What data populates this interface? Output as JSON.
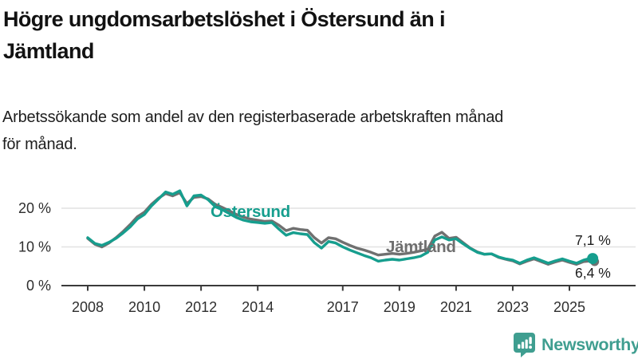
{
  "header": {
    "title_lines": [
      "Högre ungdomsarbetslöshet i Östersund än i",
      "Jämtland"
    ],
    "subtitle_lines": [
      "Arbetssökande som andel av den registerbaserade arbetskraften månad",
      "för månad."
    ]
  },
  "chart_data": {
    "type": "line",
    "title": "Högre ungdomsarbetslöshet i Östersund än i Jämtland",
    "subtitle": "Arbetssökande som andel av den registerbaserade arbetskraften månad för månad.",
    "xlabel": "",
    "ylabel": "",
    "ylim": [
      0,
      26
    ],
    "xlim": [
      2007.1,
      2027.3
    ],
    "grid": "horizontal",
    "legend_position": "inline-labels",
    "y_ticks": [
      {
        "value": 0,
        "label": "0 %"
      },
      {
        "value": 10,
        "label": "10 %"
      },
      {
        "value": 20,
        "label": "20 %"
      }
    ],
    "x_ticks": [
      {
        "value": 2008,
        "label": "2008"
      },
      {
        "value": 2010,
        "label": "2010"
      },
      {
        "value": 2012,
        "label": "2012"
      },
      {
        "value": 2014,
        "label": "2014"
      },
      {
        "value": 2017,
        "label": "2017"
      },
      {
        "value": 2019,
        "label": "2019"
      },
      {
        "value": 2021,
        "label": "2021"
      },
      {
        "value": 2023,
        "label": "2023"
      },
      {
        "value": 2025,
        "label": "2025"
      }
    ],
    "x": [
      2008.0,
      2008.25,
      2008.5,
      2008.75,
      2009.0,
      2009.25,
      2009.5,
      2009.75,
      2010.0,
      2010.25,
      2010.5,
      2010.75,
      2011.0,
      2011.25,
      2011.5,
      2011.75,
      2012.0,
      2012.25,
      2012.5,
      2012.75,
      2013.0,
      2013.25,
      2013.5,
      2013.75,
      2014.0,
      2014.25,
      2014.5,
      2014.75,
      2015.0,
      2015.25,
      2015.5,
      2015.75,
      2016.0,
      2016.25,
      2016.5,
      2016.75,
      2017.0,
      2017.25,
      2017.5,
      2017.75,
      2018.0,
      2018.25,
      2018.5,
      2018.75,
      2019.0,
      2019.25,
      2019.5,
      2019.75,
      2020.0,
      2020.25,
      2020.5,
      2020.75,
      2021.0,
      2021.25,
      2021.5,
      2021.75,
      2022.0,
      2022.25,
      2022.5,
      2022.75,
      2023.0,
      2023.25,
      2023.5,
      2023.75,
      2024.0,
      2024.25,
      2024.5,
      2024.75,
      2025.0,
      2025.25,
      2025.5,
      2025.75
    ],
    "series": [
      {
        "name": "Jämtland",
        "color": "#707070",
        "values": [
          12.2,
          10.7,
          10.0,
          11.0,
          12.4,
          14.0,
          15.8,
          17.8,
          19.0,
          21.0,
          22.6,
          23.8,
          23.2,
          24.0,
          21.2,
          22.8,
          23.0,
          22.4,
          21.0,
          20.2,
          19.3,
          18.4,
          17.7,
          17.2,
          16.9,
          16.6,
          16.7,
          15.6,
          14.2,
          14.8,
          14.5,
          14.3,
          12.4,
          11.0,
          12.4,
          12.1,
          11.2,
          10.4,
          9.7,
          9.2,
          8.6,
          7.9,
          8.1,
          8.3,
          8.1,
          8.3,
          8.6,
          9.0,
          9.4,
          12.8,
          13.8,
          12.2,
          12.5,
          11.1,
          9.7,
          8.7,
          8.1,
          8.2,
          7.3,
          6.8,
          6.4,
          5.6,
          6.3,
          6.9,
          6.2,
          5.5,
          6.1,
          6.6,
          6.0,
          5.5,
          6.2,
          6.4
        ]
      },
      {
        "name": "Östersund",
        "color": "#169E8E",
        "values": [
          12.4,
          10.9,
          10.4,
          11.2,
          12.2,
          13.6,
          15.2,
          17.2,
          18.4,
          20.6,
          22.4,
          24.2,
          23.6,
          24.5,
          20.6,
          23.2,
          23.4,
          22.2,
          20.4,
          19.6,
          18.6,
          17.6,
          16.9,
          16.5,
          16.3,
          16.1,
          16.3,
          14.6,
          13.0,
          13.7,
          13.4,
          13.2,
          11.1,
          9.7,
          11.4,
          11.0,
          10.0,
          9.2,
          8.5,
          7.8,
          7.2,
          6.3,
          6.6,
          6.8,
          6.6,
          6.9,
          7.2,
          7.6,
          8.6,
          11.8,
          12.6,
          11.8,
          12.1,
          10.8,
          9.6,
          8.6,
          8.1,
          8.2,
          7.4,
          6.9,
          6.6,
          5.8,
          6.6,
          7.2,
          6.5,
          5.8,
          6.4,
          6.9,
          6.3,
          5.8,
          6.6,
          7.1
        ]
      }
    ],
    "series_labels": [
      {
        "text": "Östersund",
        "color": "#169E8E"
      },
      {
        "text": "Jämtland",
        "color": "#6f6f6f"
      }
    ],
    "end_labels": [
      {
        "text": "7,1 %",
        "series": "Östersund"
      },
      {
        "text": "6,4 %",
        "series": "Jämtland"
      }
    ],
    "end_markers": [
      {
        "series": "Jämtland",
        "value": 6.4
      },
      {
        "series": "Östersund",
        "value": 7.1
      }
    ],
    "colors": {
      "grid": "#e2e2e2",
      "axis": "#3a3a3a",
      "tick_text": "#2e2e2e",
      "end_label_text": "#1c1c1c"
    }
  },
  "footer": {
    "brand": "Newsworthy",
    "brand_color": "#3F9E90"
  }
}
